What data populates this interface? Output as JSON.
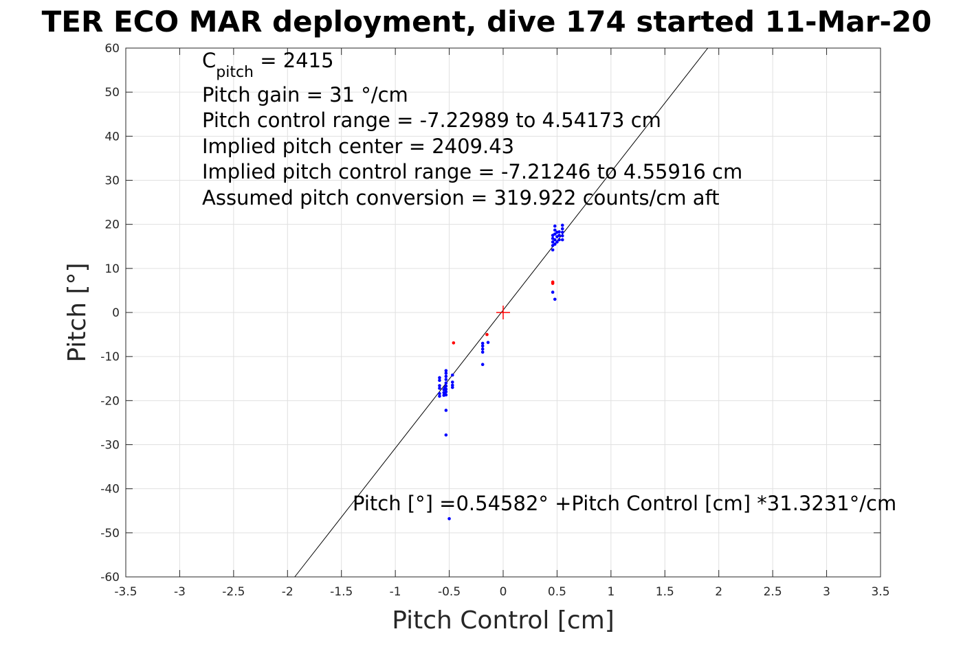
{
  "chart_data": {
    "type": "scatter",
    "title": "TER ECO MAR deployment, dive 174 started 11-Mar-20",
    "xlabel": "Pitch Control [cm]",
    "ylabel": "Pitch [°]",
    "xlim": [
      -3.5,
      3.5
    ],
    "ylim": [
      -60,
      60
    ],
    "xticks": [
      "-3.5",
      "-3",
      "-2.5",
      "-2",
      "-1.5",
      "-1",
      "-0.5",
      "0",
      "0.5",
      "1",
      "1.5",
      "2",
      "2.5",
      "3",
      "3.5"
    ],
    "yticks": [
      "60",
      "50",
      "40",
      "30",
      "20",
      "10",
      "0",
      "-10",
      "-20",
      "-30",
      "-40",
      "-50",
      "-60"
    ],
    "grid": true,
    "annotations": {
      "c_pitch_symbol": "C",
      "c_pitch_sub": "pitch",
      "c_pitch_value": " = 2415",
      "lines": [
        "Pitch gain = 31 °/cm",
        "Pitch control range = -7.22989 to 4.54173 cm",
        "Implied pitch center = 2409.43",
        "Implied pitch control range = -7.21246 to 4.55916 cm",
        "Assumed pitch conversion = 319.922 counts/cm aft"
      ],
      "fit_equation": "Pitch [°] =0.54582° +Pitch Control [cm] *31.3231°/cm"
    },
    "fit_line": {
      "intercept": 0.54582,
      "slope": 31.3231,
      "color": "#000000"
    },
    "center_marker": {
      "x": 0,
      "y": 0,
      "color": "#ff0000"
    },
    "series": [
      {
        "color": "#0000ff",
        "points": [
          [
            -0.59,
            -14.8
          ],
          [
            -0.59,
            -15.4
          ],
          [
            -0.59,
            -16.6
          ],
          [
            -0.59,
            -17.2
          ],
          [
            -0.59,
            -18.4
          ],
          [
            -0.59,
            -19.0
          ],
          [
            -0.55,
            -17.5
          ],
          [
            -0.55,
            -18.2
          ],
          [
            -0.55,
            -18.8
          ],
          [
            -0.54,
            -17.0
          ],
          [
            -0.54,
            -18.5
          ],
          [
            -0.53,
            -13.2
          ],
          [
            -0.53,
            -13.8
          ],
          [
            -0.53,
            -14.5
          ],
          [
            -0.53,
            -15.2
          ],
          [
            -0.53,
            -16.0
          ],
          [
            -0.53,
            -16.7
          ],
          [
            -0.53,
            -17.4
          ],
          [
            -0.53,
            -18.0
          ],
          [
            -0.53,
            -18.7
          ],
          [
            -0.53,
            -22.2
          ],
          [
            -0.53,
            -27.8
          ],
          [
            -0.47,
            -14.2
          ],
          [
            -0.47,
            -15.8
          ],
          [
            -0.47,
            -16.5
          ],
          [
            -0.47,
            -17.0
          ],
          [
            -0.5,
            -46.8
          ],
          [
            -0.19,
            -7.0
          ],
          [
            -0.19,
            -7.6
          ],
          [
            -0.19,
            -8.3
          ],
          [
            -0.19,
            -9.0
          ],
          [
            -0.19,
            -11.8
          ],
          [
            -0.14,
            -6.8
          ],
          [
            0.46,
            14.2
          ],
          [
            0.46,
            15.2
          ],
          [
            0.46,
            16.0
          ],
          [
            0.46,
            16.8
          ],
          [
            0.46,
            17.5
          ],
          [
            0.46,
            4.6
          ],
          [
            0.48,
            3.0
          ],
          [
            0.48,
            15.5
          ],
          [
            0.48,
            16.5
          ],
          [
            0.48,
            17.8
          ],
          [
            0.48,
            18.7
          ],
          [
            0.48,
            19.6
          ],
          [
            0.5,
            16.0
          ],
          [
            0.5,
            17.2
          ],
          [
            0.5,
            18.2
          ],
          [
            0.52,
            16.5
          ],
          [
            0.52,
            17.5
          ],
          [
            0.52,
            18.3
          ],
          [
            0.55,
            16.5
          ],
          [
            0.55,
            17.4
          ],
          [
            0.55,
            18.2
          ],
          [
            0.55,
            19.0
          ],
          [
            0.55,
            19.8
          ]
        ]
      },
      {
        "color": "#ff0000",
        "points": [
          [
            -0.46,
            -6.9
          ],
          [
            -0.15,
            -5.0
          ],
          [
            0.46,
            6.9
          ],
          [
            0.46,
            6.6
          ]
        ]
      }
    ]
  }
}
